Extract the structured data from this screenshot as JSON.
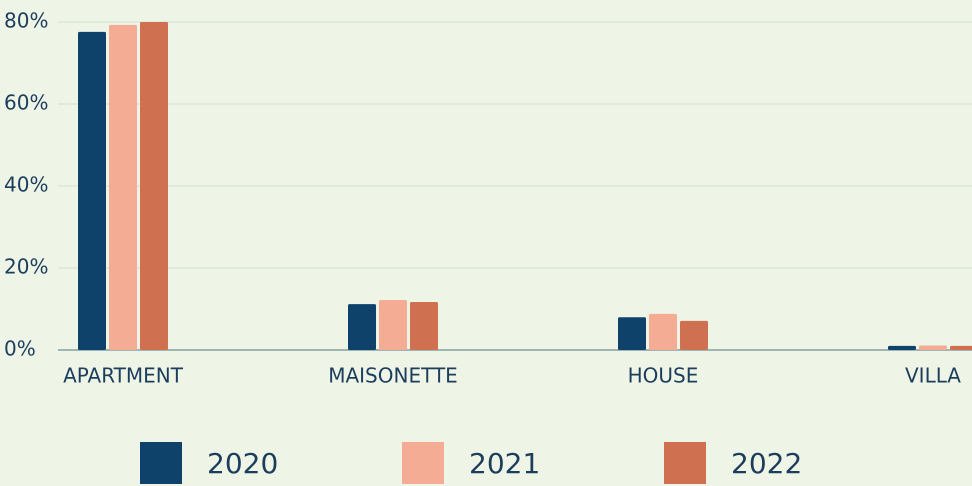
{
  "chart_data": {
    "type": "bar",
    "categories": [
      "APARTMENT",
      "MAISONETTE",
      "HOUSE",
      "VILLA"
    ],
    "series": [
      {
        "name": "2020",
        "color": "#0f426b",
        "values": [
          77.6,
          11.2,
          8.0,
          1.0
        ]
      },
      {
        "name": "2021",
        "color": "#f4ad94",
        "values": [
          79.3,
          12.2,
          8.8,
          1.1
        ]
      },
      {
        "name": "2022",
        "color": "#cf7051",
        "values": [
          80,
          11.7,
          7.1,
          1.0
        ]
      }
    ],
    "ylim": [
      0,
      80
    ],
    "yticks": [
      {
        "value": 0,
        "label": "0%"
      },
      {
        "value": 20,
        "label": "20%"
      },
      {
        "value": 40,
        "label": "40%"
      },
      {
        "value": 60,
        "label": "60%"
      },
      {
        "value": 80,
        "label": "80%"
      }
    ],
    "grid": true,
    "legend": "bottom"
  }
}
